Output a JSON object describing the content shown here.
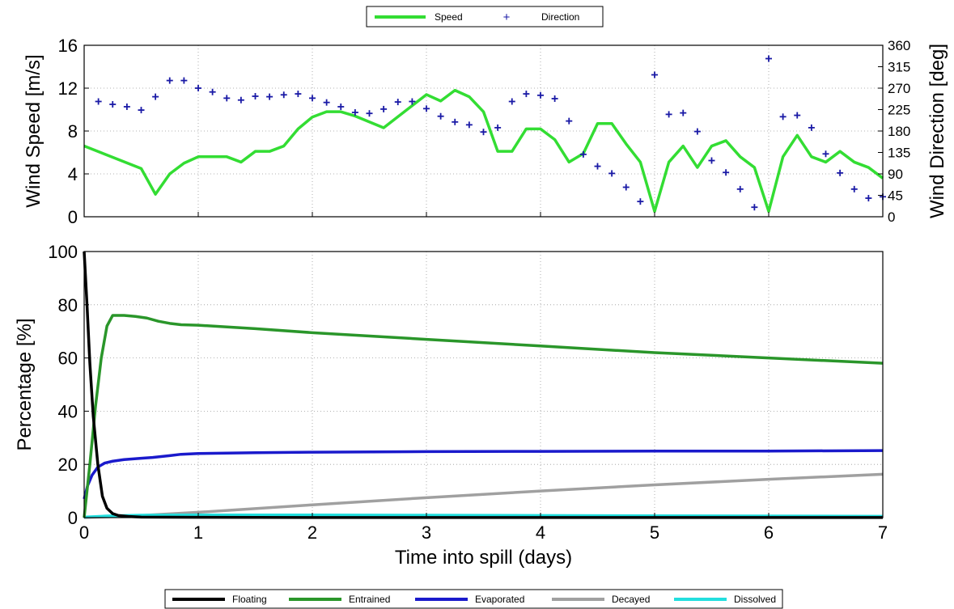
{
  "chart_data": [
    {
      "type": "line",
      "xlim": [
        0,
        7
      ],
      "ylim": [
        0,
        16
      ],
      "y2lim": [
        0,
        360
      ],
      "yticks": [
        0,
        4,
        8,
        12,
        16
      ],
      "y2ticks": [
        0,
        45,
        90,
        135,
        180,
        225,
        270,
        315,
        360
      ],
      "ylabel": "Wind Speed [m/s]",
      "y2label": "Wind Direction [deg]",
      "grid": true,
      "legend_placement": "top-center",
      "series": [
        {
          "name": "Speed",
          "style": "line",
          "axis": "left",
          "color": "#33dd33",
          "x": [
            0,
            0.5,
            0.625,
            0.75,
            0.875,
            1,
            1.25,
            1.375,
            1.5,
            1.625,
            1.75,
            1.875,
            2,
            2.125,
            2.25,
            2.375,
            2.625,
            3,
            3.125,
            3.25,
            3.375,
            3.5,
            3.625,
            3.75,
            3.875,
            4,
            4.125,
            4.25,
            4.375,
            4.5,
            4.625,
            4.75,
            4.875,
            5,
            5.125,
            5.25,
            5.375,
            5.5,
            5.625,
            5.75,
            5.875,
            6,
            6.125,
            6.25,
            6.375,
            6.5,
            6.625,
            6.75,
            6.875,
            7
          ],
          "y": [
            6.6,
            4.5,
            2.1,
            4,
            5,
            5.6,
            5.6,
            5.1,
            6.1,
            6.1,
            6.6,
            8.2,
            9.3,
            9.8,
            9.8,
            9.4,
            8.3,
            11.4,
            10.8,
            11.8,
            11.2,
            9.8,
            6.1,
            6.1,
            8.2,
            8.2,
            7.2,
            5.1,
            5.9,
            8.7,
            8.7,
            6.8,
            5.1,
            0.5,
            5.1,
            6.6,
            4.6,
            6.6,
            7.1,
            5.6,
            4.6,
            0.5,
            5.6,
            7.6,
            5.6,
            5.1,
            6.1,
            5.1,
            4.6,
            3.6
          ]
        },
        {
          "name": "Direction",
          "style": "marker",
          "marker": "+",
          "axis": "right",
          "color": "#1a1aa6",
          "x": [
            0.125,
            0.25,
            0.375,
            0.5,
            0.625,
            0.75,
            0.875,
            1,
            1.125,
            1.25,
            1.375,
            1.5,
            1.625,
            1.75,
            1.875,
            2,
            2.125,
            2.25,
            2.375,
            2.5,
            2.625,
            2.75,
            2.875,
            3,
            3.125,
            3.25,
            3.375,
            3.5,
            3.625,
            3.75,
            3.875,
            4,
            4.125,
            4.25,
            4.375,
            4.5,
            4.625,
            4.75,
            4.875,
            5,
            5.125,
            5.25,
            5.375,
            5.5,
            5.625,
            5.75,
            5.875,
            6,
            6.125,
            6.25,
            6.375,
            6.5,
            6.625,
            6.75,
            6.875,
            7
          ],
          "y": [
            242,
            236,
            231,
            224,
            252,
            286,
            286,
            270,
            262,
            249,
            245,
            253,
            252,
            256,
            258,
            249,
            240,
            231,
            219,
            217,
            226,
            241,
            242,
            227,
            211,
            199,
            193,
            178,
            187,
            242,
            258,
            255,
            248,
            201,
            131,
            106,
            91,
            62,
            32,
            298,
            215,
            218,
            179,
            118,
            93,
            58,
            20,
            332,
            210,
            213,
            187,
            132,
            92,
            58,
            39,
            42
          ]
        }
      ]
    },
    {
      "type": "line",
      "xlim": [
        0,
        7
      ],
      "ylim": [
        0,
        100
      ],
      "xticks": [
        0,
        1,
        2,
        3,
        4,
        5,
        6,
        7
      ],
      "yticks": [
        0,
        20,
        40,
        60,
        80,
        100
      ],
      "xlabel": "Time into spill (days)",
      "ylabel": "Percentage  [%]",
      "grid": true,
      "legend_placement": "bottom-center",
      "series": [
        {
          "name": "Floating",
          "color": "#000000",
          "x": [
            0,
            0.025,
            0.05,
            0.08,
            0.12,
            0.16,
            0.2,
            0.25,
            0.3,
            0.4,
            0.5,
            1,
            2,
            3,
            4,
            5,
            6,
            7
          ],
          "y": [
            100,
            80,
            58,
            38,
            20,
            8,
            3.5,
            1.5,
            0.8,
            0.4,
            0.2,
            0.1,
            0.05,
            0.05,
            0.05,
            0.05,
            0.05,
            0.05
          ]
        },
        {
          "name": "Entrained",
          "color": "#2a962a",
          "x": [
            0,
            0.05,
            0.1,
            0.15,
            0.2,
            0.25,
            0.35,
            0.45,
            0.55,
            0.65,
            0.75,
            0.85,
            1,
            1.5,
            2,
            3,
            4,
            5,
            6,
            7
          ],
          "y": [
            0,
            20,
            42,
            60,
            72,
            76,
            76,
            75.6,
            75,
            73.8,
            73,
            72.5,
            72.3,
            71,
            69.5,
            67,
            64.5,
            62,
            60,
            58
          ]
        },
        {
          "name": "Evaporated",
          "color": "#1a1acc",
          "x": [
            0,
            0.03,
            0.07,
            0.12,
            0.18,
            0.25,
            0.35,
            0.5,
            0.6,
            0.75,
            0.85,
            1,
            1.5,
            2,
            3,
            4,
            5,
            6,
            7
          ],
          "y": [
            7,
            12,
            16,
            19,
            20.5,
            21.2,
            21.8,
            22.3,
            22.6,
            23.3,
            23.8,
            24.1,
            24.4,
            24.6,
            24.8,
            24.9,
            25,
            25,
            25.2
          ]
        },
        {
          "name": "Decayed",
          "color": "#a0a0a0",
          "x": [
            0,
            0.5,
            1,
            2,
            3,
            4,
            5,
            6,
            7
          ],
          "y": [
            0,
            0.8,
            2,
            4.8,
            7.5,
            10,
            12.3,
            14.4,
            16.3
          ]
        },
        {
          "name": "Dissolved",
          "color": "#22dede",
          "x": [
            0,
            0.2,
            0.5,
            1,
            2,
            3,
            4,
            5,
            6,
            7
          ],
          "y": [
            0.2,
            0.6,
            0.9,
            1,
            1,
            0.9,
            0.8,
            0.7,
            0.6,
            0.5
          ]
        }
      ]
    }
  ]
}
